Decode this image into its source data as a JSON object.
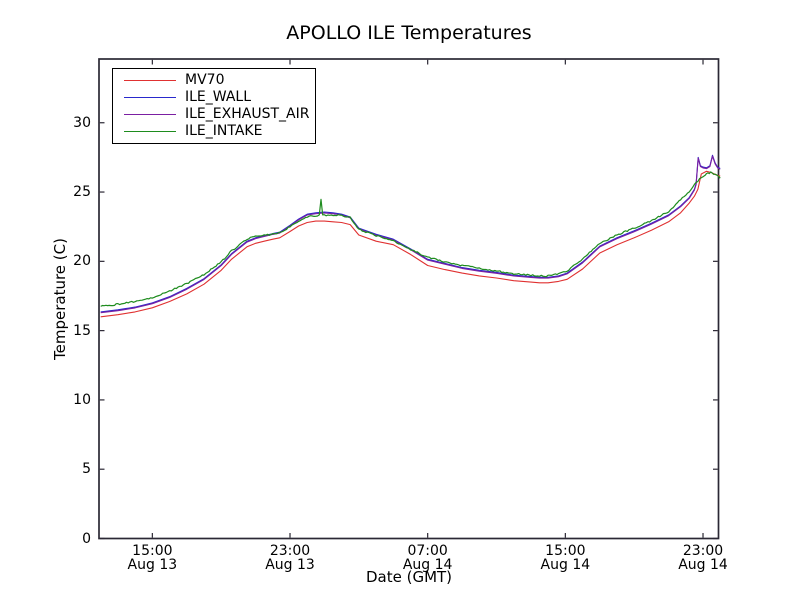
{
  "window": {
    "background": "#ffffff"
  },
  "chart_data": {
    "type": "line",
    "title": "APOLLO ILE Temperatures",
    "xlabel": "Date (GMT)",
    "ylabel": "Temperature (C)",
    "grid": false,
    "legend_position": "upper-left",
    "frame_color": "#2b2834",
    "x_encoding": "hours after Aug 13 12:00 GMT",
    "xlim": [
      -0.1,
      35.9
    ],
    "ylim": [
      0,
      34.6
    ],
    "yticks": [
      0,
      5,
      10,
      15,
      20,
      25,
      30
    ],
    "xticks": [
      {
        "t": 3,
        "time": "15:00",
        "date": "Aug 13"
      },
      {
        "t": 11,
        "time": "23:00",
        "date": "Aug 13"
      },
      {
        "t": 19,
        "time": "07:00",
        "date": "Aug 14"
      },
      {
        "t": 27,
        "time": "15:00",
        "date": "Aug 14"
      },
      {
        "t": 35,
        "time": "23:00",
        "date": "Aug 14"
      }
    ],
    "series": [
      {
        "name": "MV70",
        "color": "#e03131",
        "width": 1.1,
        "noise": 0,
        "points": [
          [
            0,
            16.0
          ],
          [
            1,
            16.15
          ],
          [
            2,
            16.35
          ],
          [
            3,
            16.65
          ],
          [
            4,
            17.1
          ],
          [
            5,
            17.65
          ],
          [
            6,
            18.35
          ],
          [
            7,
            19.35
          ],
          [
            7.6,
            20.15
          ],
          [
            8.5,
            21.05
          ],
          [
            9,
            21.3
          ],
          [
            9.5,
            21.45
          ],
          [
            10,
            21.6
          ],
          [
            10.4,
            21.7
          ],
          [
            11,
            22.15
          ],
          [
            11.5,
            22.55
          ],
          [
            12,
            22.8
          ],
          [
            12.5,
            22.9
          ],
          [
            13,
            22.9
          ],
          [
            13.5,
            22.85
          ],
          [
            14,
            22.8
          ],
          [
            14.5,
            22.65
          ],
          [
            15,
            21.9
          ],
          [
            16,
            21.45
          ],
          [
            17,
            21.2
          ],
          [
            18,
            20.5
          ],
          [
            19,
            19.7
          ],
          [
            20,
            19.4
          ],
          [
            21,
            19.15
          ],
          [
            22,
            18.95
          ],
          [
            23,
            18.8
          ],
          [
            24,
            18.6
          ],
          [
            25,
            18.5
          ],
          [
            25.5,
            18.45
          ],
          [
            26,
            18.45
          ],
          [
            26.6,
            18.55
          ],
          [
            27.1,
            18.7
          ],
          [
            28,
            19.45
          ],
          [
            29,
            20.6
          ],
          [
            30,
            21.2
          ],
          [
            31,
            21.7
          ],
          [
            32,
            22.25
          ],
          [
            33,
            22.85
          ],
          [
            33.7,
            23.5
          ],
          [
            34.2,
            24.2
          ],
          [
            34.5,
            24.7
          ],
          [
            34.7,
            25.2
          ],
          [
            34.9,
            26.3
          ],
          [
            35.2,
            26.5
          ],
          [
            35.5,
            26.4
          ],
          [
            35.75,
            26.25
          ],
          [
            36,
            26.15
          ]
        ]
      },
      {
        "name": "ILE_WALL",
        "color": "#2929cc",
        "width": 1.1,
        "noise": 0,
        "points": [
          [
            0,
            16.35
          ],
          [
            1,
            16.5
          ],
          [
            2,
            16.7
          ],
          [
            3,
            17.0
          ],
          [
            4,
            17.45
          ],
          [
            5,
            18.05
          ],
          [
            6,
            18.75
          ],
          [
            7,
            19.75
          ],
          [
            7.6,
            20.55
          ],
          [
            8.5,
            21.45
          ],
          [
            9,
            21.7
          ],
          [
            9.5,
            21.85
          ],
          [
            10,
            22.0
          ],
          [
            10.4,
            22.1
          ],
          [
            11,
            22.6
          ],
          [
            11.5,
            23.05
          ],
          [
            12,
            23.4
          ],
          [
            12.5,
            23.5
          ],
          [
            13,
            23.55
          ],
          [
            13.5,
            23.5
          ],
          [
            14,
            23.4
          ],
          [
            14.5,
            23.2
          ],
          [
            15,
            22.4
          ],
          [
            16,
            21.95
          ],
          [
            17,
            21.6
          ],
          [
            18,
            20.9
          ],
          [
            19,
            20.15
          ],
          [
            20,
            19.85
          ],
          [
            21,
            19.55
          ],
          [
            22,
            19.35
          ],
          [
            23,
            19.2
          ],
          [
            24,
            19.0
          ],
          [
            25,
            18.9
          ],
          [
            25.5,
            18.85
          ],
          [
            26,
            18.85
          ],
          [
            26.6,
            18.95
          ],
          [
            27.1,
            19.15
          ],
          [
            28,
            19.95
          ],
          [
            29,
            21.1
          ],
          [
            30,
            21.7
          ],
          [
            31,
            22.2
          ],
          [
            32,
            22.75
          ],
          [
            33,
            23.35
          ],
          [
            33.7,
            24.0
          ],
          [
            34.2,
            24.6
          ],
          [
            34.5,
            25.2
          ],
          [
            34.6,
            25.6
          ],
          [
            34.72,
            27.5
          ],
          [
            34.85,
            26.9
          ],
          [
            35.0,
            26.8
          ],
          [
            35.2,
            26.75
          ],
          [
            35.4,
            26.9
          ],
          [
            35.55,
            27.65
          ],
          [
            35.7,
            27.1
          ],
          [
            35.85,
            26.8
          ],
          [
            36,
            26.7
          ]
        ]
      },
      {
        "name": "ILE_EXHAUST_AIR",
        "color": "#7b1fa2",
        "width": 1.1,
        "noise": 0,
        "points": [
          [
            0,
            16.29
          ],
          [
            1,
            16.44
          ],
          [
            2,
            16.64
          ],
          [
            3,
            16.94
          ],
          [
            4,
            17.39
          ],
          [
            5,
            17.99
          ],
          [
            6,
            18.69
          ],
          [
            7,
            19.69
          ],
          [
            7.6,
            20.49
          ],
          [
            8.5,
            21.39
          ],
          [
            9,
            21.64
          ],
          [
            9.5,
            21.79
          ],
          [
            10,
            21.94
          ],
          [
            10.4,
            22.04
          ],
          [
            11,
            22.54
          ],
          [
            11.5,
            22.99
          ],
          [
            12,
            23.34
          ],
          [
            12.5,
            23.44
          ],
          [
            13,
            23.49
          ],
          [
            13.5,
            23.44
          ],
          [
            14,
            23.34
          ],
          [
            14.5,
            23.14
          ],
          [
            15,
            22.34
          ],
          [
            16,
            21.89
          ],
          [
            17,
            21.54
          ],
          [
            18,
            20.84
          ],
          [
            19,
            20.09
          ],
          [
            20,
            19.79
          ],
          [
            21,
            19.49
          ],
          [
            22,
            19.29
          ],
          [
            23,
            19.14
          ],
          [
            24,
            18.94
          ],
          [
            25,
            18.84
          ],
          [
            25.5,
            18.79
          ],
          [
            26,
            18.79
          ],
          [
            26.6,
            18.89
          ],
          [
            27.1,
            19.09
          ],
          [
            28,
            19.89
          ],
          [
            29,
            21.04
          ],
          [
            30,
            21.64
          ],
          [
            31,
            22.14
          ],
          [
            32,
            22.69
          ],
          [
            33,
            23.29
          ],
          [
            33.7,
            23.94
          ],
          [
            34.2,
            24.54
          ],
          [
            34.5,
            25.14
          ],
          [
            34.6,
            25.54
          ],
          [
            34.72,
            27.44
          ],
          [
            34.85,
            26.84
          ],
          [
            35.0,
            26.74
          ],
          [
            35.2,
            26.69
          ],
          [
            35.4,
            26.84
          ],
          [
            35.55,
            27.59
          ],
          [
            35.7,
            27.04
          ],
          [
            35.85,
            26.74
          ],
          [
            36,
            26.64
          ]
        ]
      },
      {
        "name": "ILE_INTAKE",
        "color": "#1e8c1e",
        "width": 1.2,
        "noise": 0.055,
        "points": [
          [
            0,
            16.75
          ],
          [
            1,
            16.9
          ],
          [
            2,
            17.1
          ],
          [
            3,
            17.4
          ],
          [
            4,
            17.85
          ],
          [
            5,
            18.4
          ],
          [
            6,
            19.05
          ],
          [
            7,
            19.95
          ],
          [
            7.6,
            20.75
          ],
          [
            8.5,
            21.6
          ],
          [
            9,
            21.8
          ],
          [
            9.5,
            21.9
          ],
          [
            10,
            21.95
          ],
          [
            10.4,
            22.05
          ],
          [
            11,
            22.5
          ],
          [
            11.5,
            22.9
          ],
          [
            12,
            23.2
          ],
          [
            12.5,
            23.3
          ],
          [
            12.7,
            23.32
          ],
          [
            12.8,
            24.45
          ],
          [
            12.9,
            23.33
          ],
          [
            13.5,
            23.35
          ],
          [
            14,
            23.3
          ],
          [
            14.5,
            23.15
          ],
          [
            15,
            22.3
          ],
          [
            16,
            21.85
          ],
          [
            17,
            21.5
          ],
          [
            18,
            20.85
          ],
          [
            19,
            20.3
          ],
          [
            20,
            19.95
          ],
          [
            21,
            19.7
          ],
          [
            22,
            19.5
          ],
          [
            23,
            19.3
          ],
          [
            24,
            19.1
          ],
          [
            25,
            19.0
          ],
          [
            25.5,
            18.95
          ],
          [
            26,
            18.95
          ],
          [
            26.6,
            19.1
          ],
          [
            27.1,
            19.3
          ],
          [
            28,
            20.15
          ],
          [
            29,
            21.3
          ],
          [
            30,
            21.9
          ],
          [
            31,
            22.4
          ],
          [
            32,
            22.95
          ],
          [
            33,
            23.6
          ],
          [
            33.7,
            24.45
          ],
          [
            34.2,
            25.0
          ],
          [
            34.5,
            25.5
          ],
          [
            34.8,
            25.95
          ],
          [
            35,
            26.15
          ],
          [
            35.2,
            26.3
          ],
          [
            35.45,
            26.4
          ],
          [
            35.7,
            26.3
          ],
          [
            36,
            26.0
          ]
        ]
      }
    ]
  }
}
